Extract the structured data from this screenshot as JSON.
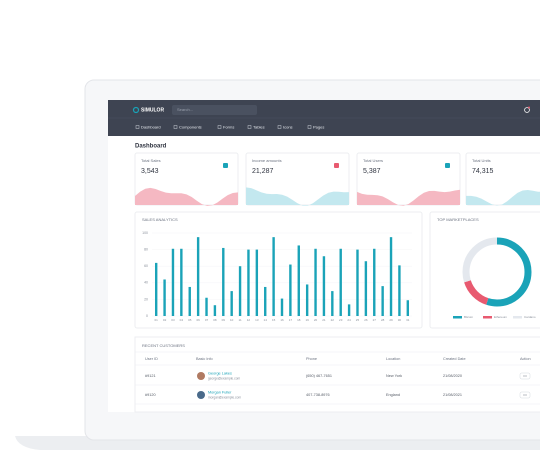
{
  "header": {
    "logo": "SIMULOR",
    "search_placeholder": "Search..."
  },
  "menu": [
    "Dashboard",
    "Components",
    "Forms",
    "Tables",
    "Icons",
    "Pages"
  ],
  "page_title": "Dashboard",
  "stats": [
    {
      "title": "Total Sales",
      "value": "3,543"
    },
    {
      "title": "Income amounts",
      "value": "21,287"
    },
    {
      "title": "Total Users",
      "value": "5,387"
    },
    {
      "title": "Total Units",
      "value": "74,315"
    }
  ],
  "sales_analytics": {
    "type": "bar",
    "title": "SALES ANALYTICS",
    "color": "#1aa3b8",
    "categories": [
      "01",
      "02",
      "03",
      "04",
      "05",
      "06",
      "07",
      "08",
      "09",
      "10",
      "11",
      "12",
      "13",
      "14",
      "15",
      "16",
      "17",
      "18",
      "19",
      "20",
      "21",
      "22",
      "23",
      "24",
      "25",
      "26",
      "27",
      "28",
      "29",
      "30",
      "31"
    ],
    "values": [
      64,
      44,
      81,
      81,
      35,
      95,
      22,
      13,
      82,
      30,
      60,
      80,
      80,
      35,
      95,
      21,
      62,
      85,
      38,
      81,
      72,
      30,
      81,
      14,
      80,
      66,
      81,
      36,
      95,
      61,
      19
    ],
    "ylim": [
      0,
      100
    ],
    "yticks": [
      0,
      20,
      40,
      60,
      80,
      100
    ]
  },
  "top_marketplaces": {
    "type": "pie",
    "title": "TOP MARKETPLACES",
    "series": [
      {
        "name": "Bitcoin",
        "color": "#1aa3b8",
        "value": 55
      },
      {
        "name": "Ethereum",
        "color": "#e85a70",
        "value": 15
      },
      {
        "name": "Cardano",
        "color": "#e4e8ee",
        "value": 30
      }
    ]
  },
  "customers": {
    "title": "RECENT CUSTOMERS",
    "columns": [
      "User ID",
      "Basic Info",
      "Phone",
      "Location",
      "Created Date",
      "Action"
    ],
    "rows": [
      {
        "id": "#9121",
        "name": "George Lakes",
        "email": "george@example.com",
        "phone": "(650) 467-7651",
        "location": "New York",
        "date": "21/08/2020"
      },
      {
        "id": "#9120",
        "name": "Morgan Fuller",
        "email": "morgan@example.com",
        "phone": "407-738-8976",
        "location": "England",
        "date": "21/08/2021"
      }
    ]
  }
}
